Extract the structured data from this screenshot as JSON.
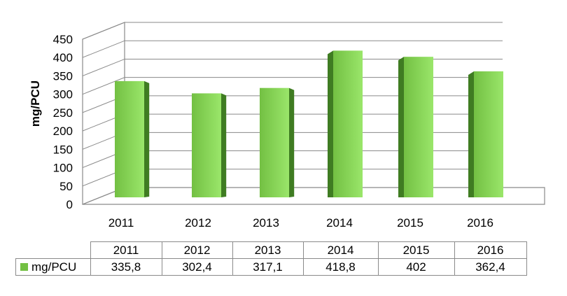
{
  "chart_data": {
    "type": "bar",
    "title": "",
    "xlabel": "",
    "ylabel": "mg/PCU",
    "categories": [
      "2011",
      "2012",
      "2013",
      "2014",
      "2015",
      "2016"
    ],
    "series": [
      {
        "name": "mg/PCU",
        "values": [
          335.8,
          302.4,
          317.1,
          418.8,
          402,
          362.4
        ]
      }
    ],
    "ylim": [
      0,
      450
    ],
    "yticks": [
      "0",
      "50",
      "100",
      "150",
      "200",
      "250",
      "300",
      "350",
      "400",
      "450"
    ],
    "grid": true,
    "style": "3d-column",
    "colors": {
      "bar": "#73c043",
      "bar_light": "#9ae66a",
      "bar_side": "#3f7c22"
    },
    "data_table": {
      "headers": [
        "2011",
        "2012",
        "2013",
        "2014",
        "2015",
        "2016"
      ],
      "row_label": "mg/PCU",
      "values": [
        "335,8",
        "302,4",
        "317,1",
        "418,8",
        "402",
        "362,4"
      ]
    }
  }
}
